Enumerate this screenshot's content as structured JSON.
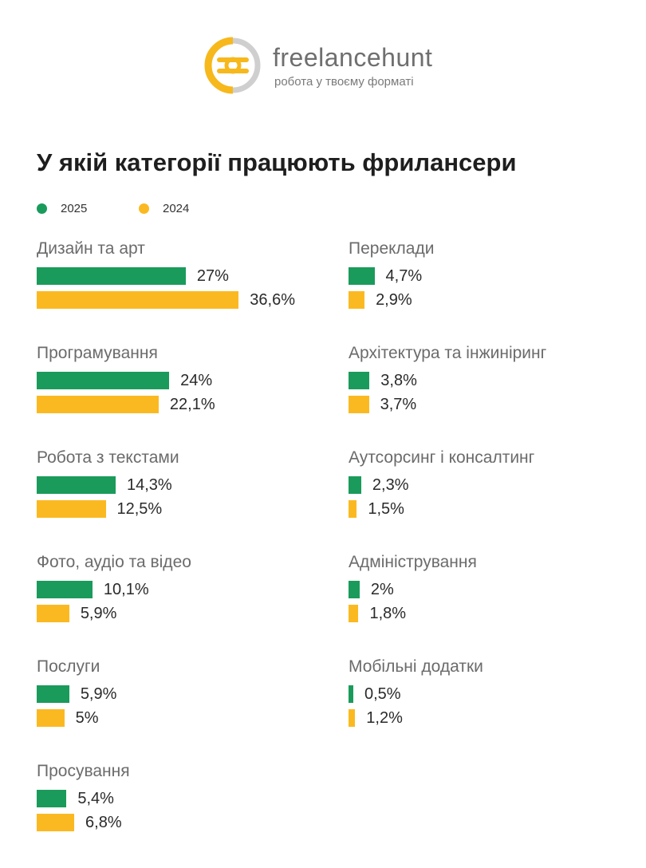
{
  "brand": {
    "name": "freelancehunt",
    "tagline": "робота у твоєму форматі"
  },
  "colors": {
    "y2025": "#1a9b5b",
    "y2024": "#fbb921",
    "logo_yellow": "#f7b81c",
    "logo_gray": "#cfcfcf"
  },
  "chart_data": {
    "type": "bar",
    "orientation": "horizontal",
    "title": "У якій категорії працюють фрилансери",
    "legend": [
      "2025",
      "2024"
    ],
    "unit": "%",
    "columns": [
      [
        {
          "category": "Дизайн та арт",
          "v2025": 27,
          "v2025_label": "27%",
          "v2024": 36.6,
          "v2024_label": "36,6%"
        },
        {
          "category": "Програмування",
          "v2025": 24,
          "v2025_label": "24%",
          "v2024": 22.1,
          "v2024_label": "22,1%"
        },
        {
          "category": "Робота з текстами",
          "v2025": 14.3,
          "v2025_label": "14,3%",
          "v2024": 12.5,
          "v2024_label": "12,5%"
        },
        {
          "category": "Фото, аудіо та відео",
          "v2025": 10.1,
          "v2025_label": "10,1%",
          "v2024": 5.9,
          "v2024_label": "5,9%"
        },
        {
          "category": "Послуги",
          "v2025": 5.9,
          "v2025_label": "5,9%",
          "v2024": 5,
          "v2024_label": "5%"
        },
        {
          "category": "Просування",
          "v2025": 5.4,
          "v2025_label": "5,4%",
          "v2024": 6.8,
          "v2024_label": "6,8%"
        }
      ],
      [
        {
          "category": "Переклади",
          "v2025": 4.7,
          "v2025_label": "4,7%",
          "v2024": 2.9,
          "v2024_label": "2,9%"
        },
        {
          "category": "Архітектура та інжиніринг",
          "v2025": 3.8,
          "v2025_label": "3,8%",
          "v2024": 3.7,
          "v2024_label": "3,7%"
        },
        {
          "category": "Аутсорсинг і консалтинг",
          "v2025": 2.3,
          "v2025_label": "2,3%",
          "v2024": 1.5,
          "v2024_label": "1,5%"
        },
        {
          "category": "Адміністрування",
          "v2025": 2,
          "v2025_label": "2%",
          "v2024": 1.8,
          "v2024_label": "1,8%"
        },
        {
          "category": "Мобільні додатки",
          "v2025": 0.5,
          "v2025_label": "0,5%",
          "v2024": 1.2,
          "v2024_label": "1,2%"
        }
      ]
    ]
  }
}
